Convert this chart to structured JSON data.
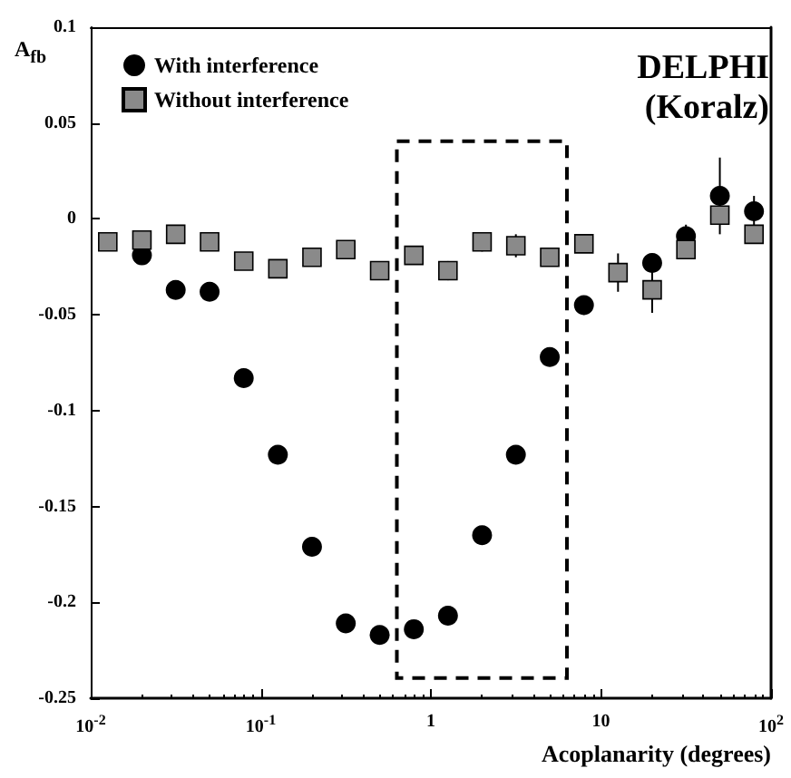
{
  "chart_data": {
    "type": "scatter",
    "xlabel": "Acoplanarity (degrees)",
    "ylabel": "A$_{fb}$",
    "annotations": [
      "DELPHI",
      "(Koralz)"
    ],
    "log": "x",
    "legend": "top left",
    "grid": false,
    "xlim": [
      0.01,
      100
    ],
    "xticks": [
      {
        "value": 0.01,
        "label": "10$^{-2}$"
      },
      {
        "value": 0.1,
        "label": "10$^{-1}$"
      },
      1,
      10,
      {
        "value": 100,
        "label": "10$^{2}$"
      }
    ],
    "ylim": [
      -0.25,
      0.1
    ],
    "yticks": [
      -0.25,
      -0.2,
      -0.15,
      -0.1,
      -0.05,
      0,
      0.05,
      0.1
    ],
    "x": [
      0.0126,
      0.02,
      0.0316,
      0.05,
      0.0794,
      0.126,
      0.2,
      0.316,
      0.5,
      0.794,
      1.26,
      2,
      3.16,
      5,
      7.94,
      12.6,
      20,
      31.6,
      50,
      79.4
    ],
    "series": [
      {
        "name": "With interference",
        "color": "#000000",
        "marker": "circle",
        "values": [
          null,
          -0.019,
          -0.037,
          -0.038,
          -0.083,
          -0.123,
          -0.171,
          -0.211,
          -0.217,
          -0.214,
          -0.207,
          -0.165,
          -0.123,
          -0.072,
          -0.045,
          null,
          -0.023,
          -0.009,
          0.012,
          0.004
        ],
        "errors": [
          null,
          null,
          null,
          null,
          null,
          null,
          null,
          null,
          null,
          null,
          null,
          null,
          0.004,
          null,
          0.005,
          null,
          null,
          0.006,
          0.02,
          0.008
        ]
      },
      {
        "name": "Without interference",
        "color": "#8a8a8a",
        "marker": "square",
        "values": [
          -0.012,
          -0.011,
          -0.008,
          -0.012,
          -0.022,
          -0.026,
          -0.02,
          -0.016,
          -0.027,
          -0.019,
          -0.027,
          -0.012,
          -0.014,
          -0.02,
          -0.013,
          -0.028,
          -0.037,
          -0.016,
          0.002,
          -0.008
        ],
        "errors": [
          null,
          null,
          null,
          null,
          null,
          null,
          null,
          0.004,
          null,
          null,
          0.005,
          0.005,
          0.006,
          null,
          null,
          0.01,
          0.012,
          null,
          null,
          null
        ]
      }
    ]
  }
}
